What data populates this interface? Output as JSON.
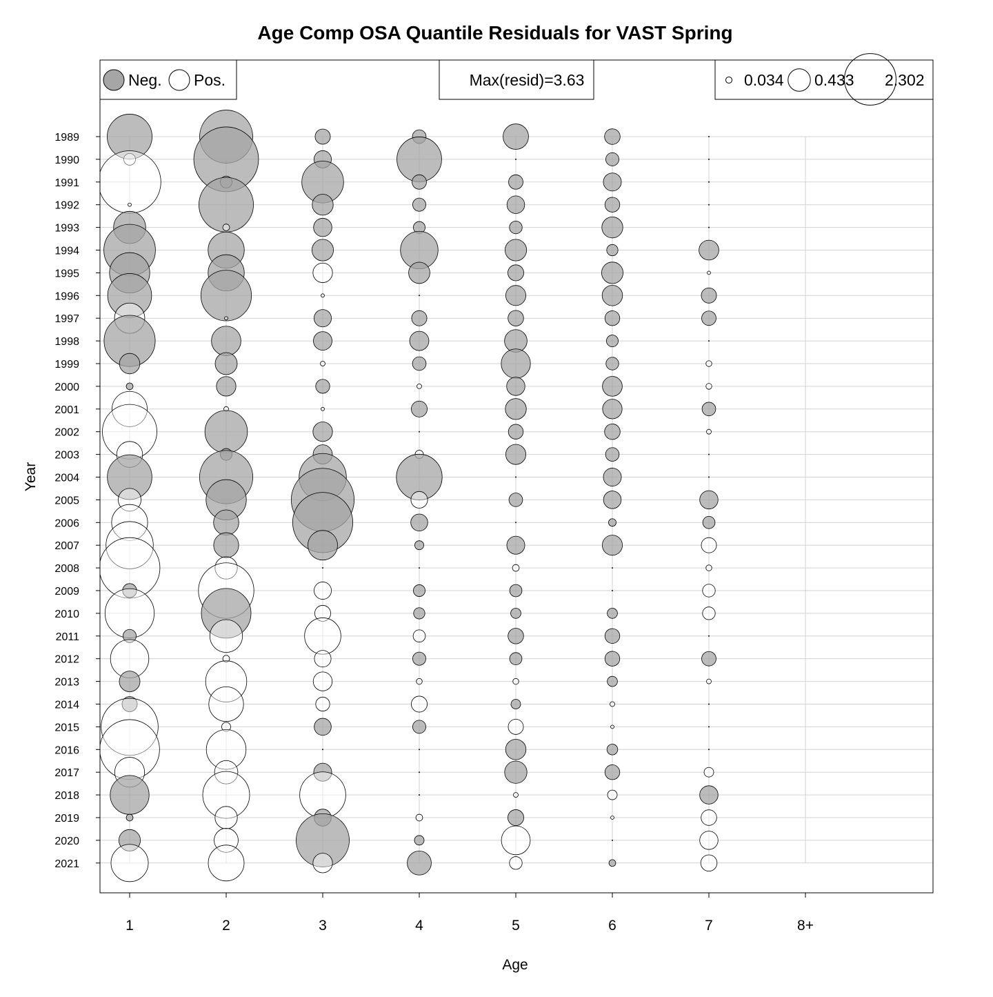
{
  "chart_data": {
    "type": "bubble",
    "title": "Age Comp OSA Quantile Residuals for VAST Spring",
    "xlabel": "Age",
    "ylabel": "Year",
    "categories": [
      "1",
      "2",
      "3",
      "4",
      "5",
      "6",
      "7",
      "8+"
    ],
    "years": [
      1989,
      1990,
      1991,
      1992,
      1993,
      1994,
      1995,
      1996,
      1997,
      1998,
      1999,
      2000,
      2001,
      2002,
      2003,
      2004,
      2005,
      2006,
      2007,
      2008,
      2009,
      2010,
      2011,
      2012,
      2013,
      2014,
      2015,
      2016,
      2017,
      2018,
      2019,
      2020,
      2021
    ],
    "max_resid_text": "Max(resid)=3.63",
    "max_abs_resid": 3.63,
    "neg_color": "#a6a6a6",
    "pos_color": "#ffffff",
    "grid": true,
    "legend_sign": {
      "neg_label": "Neg.",
      "pos_label": "Pos."
    },
    "legend_size": [
      {
        "value": 0.034,
        "label": "0.034"
      },
      {
        "value": 0.433,
        "label": "0.433"
      },
      {
        "value": 2.302,
        "label": "2.302"
      }
    ],
    "residuals": [
      [
        -1.74,
        -2.43,
        -0.2,
        -0.16,
        -0.56,
        -0.21,
        0.0,
        null
      ],
      [
        0.12,
        -3.62,
        -0.26,
        -1.73,
        0.0,
        -0.15,
        0.0,
        null
      ],
      [
        3.37,
        -0.12,
        -1.51,
        -0.18,
        -0.18,
        -0.28,
        0.0,
        null
      ],
      [
        0.01,
        -2.57,
        -0.38,
        -0.15,
        -0.27,
        -0.19,
        0.0,
        null
      ],
      [
        -0.89,
        0.04,
        -0.29,
        -0.12,
        -0.14,
        -0.38,
        0.0,
        null
      ],
      [
        -2.3,
        -1.13,
        -0.4,
        -1.22,
        -0.4,
        -0.11,
        -0.34,
        null
      ],
      [
        -1.4,
        -1.13,
        0.33,
        -0.39,
        -0.22,
        -0.4,
        0.01,
        null
      ],
      [
        -1.67,
        -2.21,
        0.01,
        0.0,
        -0.35,
        -0.36,
        -0.2,
        null
      ],
      [
        0.79,
        0.01,
        -0.26,
        -0.2,
        -0.21,
        -0.19,
        -0.18,
        null
      ],
      [
        -2.26,
        -0.75,
        -0.3,
        -0.32,
        -0.44,
        -0.12,
        0.0,
        null
      ],
      [
        -0.36,
        -0.42,
        0.02,
        -0.16,
        -0.74,
        -0.14,
        0.03,
        null
      ],
      [
        -0.04,
        -0.33,
        -0.17,
        0.02,
        -0.29,
        -0.34,
        0.03,
        null
      ],
      [
        1.07,
        0.02,
        0.01,
        -0.22,
        -0.38,
        -0.33,
        -0.16,
        null
      ],
      [
        2.57,
        -1.56,
        -0.33,
        0.0,
        -0.19,
        -0.21,
        0.02,
        null
      ],
      [
        0.58,
        -0.12,
        -0.32,
        0.06,
        -0.35,
        -0.16,
        0.0,
        null
      ],
      [
        -1.72,
        -2.45,
        -1.93,
        -1.81,
        0.0,
        -0.28,
        0.0,
        null
      ],
      [
        0.45,
        -1.4,
        -3.42,
        0.24,
        -0.16,
        -0.27,
        -0.29,
        null
      ],
      [
        1.12,
        -0.55,
        -3.13,
        -0.25,
        0.0,
        -0.05,
        -0.13,
        null
      ],
      [
        1.93,
        -0.54,
        -0.76,
        -0.07,
        -0.28,
        -0.35,
        0.2,
        null
      ],
      [
        3.17,
        0.43,
        0.0,
        0.0,
        0.04,
        0.0,
        0.03,
        null
      ],
      [
        -0.17,
        2.66,
        0.26,
        -0.12,
        -0.13,
        0.0,
        0.14,
        null
      ],
      [
        2.09,
        -2.13,
        0.22,
        -0.11,
        -0.09,
        -0.09,
        0.14,
        null
      ],
      [
        -0.15,
        0.92,
        1.14,
        0.13,
        -0.21,
        -0.19,
        0.0,
        null
      ],
      [
        1.27,
        0.04,
        0.24,
        -0.15,
        -0.13,
        -0.19,
        -0.18,
        null
      ],
      [
        -0.37,
        1.46,
        0.31,
        0.03,
        0.03,
        -0.09,
        0.02,
        null
      ],
      [
        -0.2,
        1.04,
        0.17,
        0.22,
        -0.08,
        0.02,
        0.0,
        null
      ],
      [
        2.81,
        0.07,
        -0.25,
        -0.15,
        0.2,
        0.01,
        0.0,
        null
      ],
      [
        3.09,
        1.36,
        0.0,
        0.0,
        -0.36,
        -0.1,
        0.0,
        null
      ],
      [
        0.77,
        0.47,
        -0.28,
        0.0,
        -0.43,
        -0.19,
        0.08,
        null
      ],
      [
        -1.31,
        1.9,
        1.83,
        0.0,
        0.02,
        0.08,
        -0.29,
        null
      ],
      [
        -0.04,
        0.43,
        -0.25,
        0.04,
        -0.22,
        0.01,
        0.21,
        null
      ],
      [
        -0.4,
        0.5,
        -2.44,
        -0.08,
        0.72,
        0.0,
        0.29,
        null
      ],
      [
        1.2,
        1.11,
        0.33,
        -0.5,
        0.14,
        -0.04,
        0.23,
        null
      ]
    ]
  }
}
